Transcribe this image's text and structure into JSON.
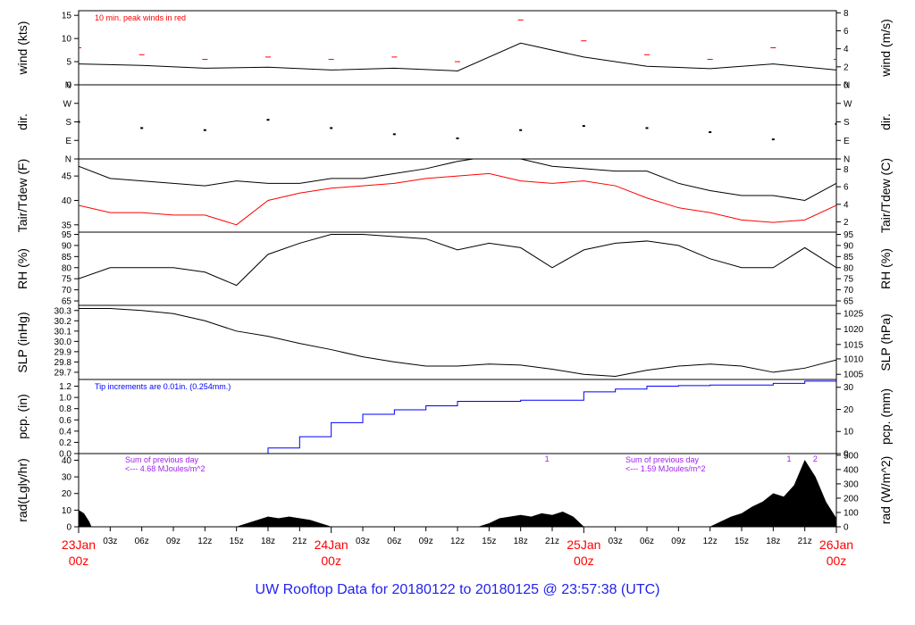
{
  "title": "UW Rooftop Data for 20180122  to  20180125 @ 23:57:38  (UTC)",
  "colors": {
    "black": "#000000",
    "red": "#ff0000",
    "blue": "#0000ff",
    "purple": "#a020f0",
    "title": "#2222ee"
  },
  "chart_data": [
    {
      "type": "line",
      "ylabel_left": "wind (kts)",
      "ylabel_right": "wind (m/s)",
      "ylim": [
        0,
        16
      ],
      "yticks_left": [
        "0",
        "5",
        "10",
        "15"
      ],
      "ytick_values_left": [
        0,
        5,
        10,
        15
      ],
      "yticks_right": [
        "0",
        "2",
        "4",
        "6",
        "8"
      ],
      "ytick_values_right": [
        0,
        3.89,
        7.78,
        11.66,
        15.55
      ],
      "annotation": "10 min. peak winds in red",
      "series": [
        {
          "color": "#000000",
          "x": [
            0,
            6,
            12,
            18,
            24,
            30,
            36,
            42,
            48,
            54,
            60,
            66,
            72
          ],
          "y": [
            4.5,
            4.2,
            3.6,
            3.8,
            3.2,
            3.6,
            3.0,
            9.0,
            6.0,
            4.0,
            3.5,
            4.5,
            3.2
          ]
        },
        {
          "color": "#ff0000",
          "style": "dashes",
          "x": [
            0,
            6,
            12,
            18,
            24,
            30,
            36,
            42,
            48,
            54,
            60,
            66,
            72
          ],
          "y": [
            8.0,
            6.5,
            5.5,
            6.0,
            5.5,
            6.0,
            5.0,
            14.0,
            9.5,
            6.5,
            5.5,
            8.0,
            5.5
          ]
        }
      ]
    },
    {
      "type": "scatter",
      "ylabel_left": "dir.",
      "ylabel_right": "dir.",
      "ylim": [
        0,
        360
      ],
      "yticks_left": [
        "N",
        "E",
        "S",
        "W",
        "N"
      ],
      "ytick_values_left": [
        0,
        90,
        180,
        270,
        360
      ],
      "yticks_right": [
        "N",
        "E",
        "S",
        "W",
        "N"
      ],
      "ytick_values_right": [
        0,
        90,
        180,
        270,
        360
      ],
      "series": [
        {
          "color": "#000000",
          "x": [
            0,
            6,
            12,
            18,
            24,
            30,
            36,
            42,
            48,
            54,
            60,
            66,
            72
          ],
          "y": [
            180,
            150,
            140,
            190,
            150,
            120,
            100,
            140,
            160,
            150,
            130,
            95,
            170
          ]
        }
      ]
    },
    {
      "type": "line",
      "ylabel_left": "Tair/Tdew (F)",
      "ylabel_right": "Tair/Tdew (C)",
      "ylim": [
        33.5,
        48.5
      ],
      "yticks_left": [
        "35",
        "40",
        "45"
      ],
      "ytick_values_left": [
        35,
        40,
        45
      ],
      "yticks_right": [
        "2",
        "4",
        "6",
        "8"
      ],
      "ytick_values_right": [
        35.6,
        39.2,
        42.8,
        46.4
      ],
      "series": [
        {
          "color": "#000000",
          "x": [
            0,
            3,
            6,
            9,
            12,
            15,
            18,
            21,
            24,
            27,
            30,
            33,
            36,
            39,
            42,
            45,
            48,
            51,
            54,
            57,
            60,
            63,
            66,
            69,
            72
          ],
          "y": [
            47,
            44.5,
            44,
            43.5,
            43,
            44,
            43.5,
            43.5,
            44.5,
            44.5,
            45.5,
            46.5,
            48,
            49,
            48.5,
            47,
            46.5,
            46,
            46,
            43.5,
            42,
            41,
            41,
            40,
            43.5
          ]
        },
        {
          "color": "#ff0000",
          "x": [
            0,
            3,
            6,
            9,
            12,
            15,
            18,
            21,
            24,
            27,
            30,
            33,
            36,
            39,
            42,
            45,
            48,
            51,
            54,
            57,
            60,
            63,
            66,
            69,
            72
          ],
          "y": [
            39,
            37.5,
            37.5,
            37,
            37,
            35,
            40,
            41.5,
            42.5,
            43,
            43.5,
            44.5,
            45,
            45.5,
            44,
            43.5,
            44,
            43,
            40.5,
            38.5,
            37.5,
            36,
            35.5,
            36,
            39
          ]
        }
      ]
    },
    {
      "type": "line",
      "ylabel_left": "RH (%)",
      "ylabel_right": "RH (%)",
      "ylim": [
        63,
        96
      ],
      "yticks_left": [
        "65",
        "70",
        "75",
        "80",
        "85",
        "90",
        "95"
      ],
      "ytick_values_left": [
        65,
        70,
        75,
        80,
        85,
        90,
        95
      ],
      "yticks_right": [
        "65",
        "70",
        "75",
        "80",
        "85",
        "90",
        "95"
      ],
      "ytick_values_right": [
        65,
        70,
        75,
        80,
        85,
        90,
        95
      ],
      "series": [
        {
          "color": "#000000",
          "x": [
            0,
            3,
            6,
            9,
            12,
            15,
            18,
            21,
            24,
            27,
            30,
            33,
            36,
            39,
            42,
            45,
            48,
            51,
            54,
            57,
            60,
            63,
            66,
            69,
            72
          ],
          "y": [
            75,
            80,
            80,
            80,
            78,
            72,
            86,
            91,
            95,
            95,
            94,
            93,
            88,
            91,
            89,
            80,
            88,
            91,
            92,
            90,
            84,
            80,
            80,
            89,
            80
          ]
        }
      ]
    },
    {
      "type": "line",
      "ylabel_left": "SLP (inHg)",
      "ylabel_right": "SLP (hPa)",
      "ylim": [
        29.63,
        30.35
      ],
      "yticks_left": [
        "29.7",
        "29.8",
        "29.9",
        "30.0",
        "30.1",
        "30.2",
        "30.3"
      ],
      "ytick_values_left": [
        29.7,
        29.8,
        29.9,
        30.0,
        30.1,
        30.2,
        30.3
      ],
      "yticks_right": [
        "1005",
        "1010",
        "1015",
        "1020",
        "1025"
      ],
      "ytick_values_right": [
        29.68,
        29.83,
        29.97,
        30.12,
        30.27
      ],
      "series": [
        {
          "color": "#000000",
          "x": [
            0,
            3,
            6,
            9,
            12,
            15,
            18,
            21,
            24,
            27,
            30,
            33,
            36,
            39,
            42,
            45,
            48,
            51,
            54,
            57,
            60,
            63,
            66,
            69,
            72
          ],
          "y": [
            30.32,
            30.32,
            30.3,
            30.27,
            30.2,
            30.1,
            30.05,
            29.98,
            29.92,
            29.85,
            29.8,
            29.76,
            29.76,
            29.78,
            29.77,
            29.73,
            29.68,
            29.66,
            29.72,
            29.76,
            29.78,
            29.76,
            29.7,
            29.74,
            29.82
          ]
        }
      ]
    },
    {
      "type": "line",
      "ylabel_left": "pcp. (in)",
      "ylabel_right": "pcp. (mm)",
      "ylim": [
        0,
        1.32
      ],
      "yticks_left": [
        "0.0",
        "0.2",
        "0.4",
        "0.6",
        "0.8",
        "1.0",
        "1.2"
      ],
      "ytick_values_left": [
        0,
        0.2,
        0.4,
        0.6,
        0.8,
        1.0,
        1.2
      ],
      "yticks_right": [
        "0",
        "10",
        "20",
        "30"
      ],
      "ytick_values_right": [
        0,
        0.394,
        0.787,
        1.181
      ],
      "annotation": "Tip increments are 0.01in. (0.254mm.)",
      "series": [
        {
          "color": "#0000ff",
          "step": true,
          "x": [
            0,
            15,
            18,
            21,
            24,
            27,
            30,
            33,
            36,
            39,
            42,
            45,
            48,
            51,
            54,
            57,
            60,
            63,
            66,
            69,
            72
          ],
          "y": [
            0,
            0,
            0.1,
            0.3,
            0.55,
            0.7,
            0.78,
            0.85,
            0.93,
            0.93,
            0.95,
            0.95,
            1.1,
            1.15,
            1.2,
            1.21,
            1.22,
            1.22,
            1.25,
            1.29,
            1.29
          ]
        }
      ]
    },
    {
      "type": "area",
      "ylabel_left": "rad(Lgly/hr)",
      "ylabel_right": "rad (W/m^2)",
      "ylim": [
        0,
        44
      ],
      "yticks_left": [
        "0",
        "10",
        "20",
        "30",
        "40"
      ],
      "ytick_values_left": [
        0,
        10,
        20,
        30,
        40
      ],
      "yticks_right": [
        "0",
        "100",
        "200",
        "300",
        "400",
        "500"
      ],
      "ytick_values_right": [
        0,
        8.6,
        17.2,
        25.8,
        34.4,
        43.0
      ],
      "series": [
        {
          "color": "#000000",
          "x": [
            0,
            0.5,
            1,
            1.2,
            15,
            16,
            17,
            18,
            19,
            20,
            21,
            22,
            23,
            24,
            38,
            39,
            40,
            41,
            42,
            43,
            44,
            45,
            46,
            47,
            48,
            60,
            61,
            62,
            63,
            64,
            65,
            66,
            67,
            68,
            69,
            70,
            71,
            72
          ],
          "y": [
            10,
            8,
            3,
            0,
            0,
            2,
            4,
            6,
            5,
            6,
            5,
            4,
            2,
            0,
            0,
            2,
            5,
            6,
            7,
            6,
            8,
            7,
            9,
            6,
            0,
            0,
            3,
            6,
            8,
            12,
            15,
            20,
            18,
            25,
            40,
            30,
            15,
            5
          ]
        }
      ],
      "annotations": [
        {
          "lines": [
            "Sum of previous day",
            "<--- 4.68 MJoules/m^2"
          ],
          "color": "#a020f0"
        },
        {
          "lines": [
            "Sum of previous day",
            "<--- 1.59 MJoules/m^2"
          ],
          "color": "#a020f0"
        },
        {
          "text": "1",
          "color": "#a020f0",
          "x": 44.5
        },
        {
          "text": "1",
          "color": "#a020f0",
          "x": 67.5
        },
        {
          "text": "2",
          "color": "#a020f0",
          "x": 70.0
        }
      ]
    }
  ],
  "x_axis": {
    "range_hours": [
      0,
      72
    ],
    "hour_ticks": [
      {
        "h": 3,
        "label": "03z"
      },
      {
        "h": 6,
        "label": "06z"
      },
      {
        "h": 9,
        "label": "09z"
      },
      {
        "h": 12,
        "label": "12z"
      },
      {
        "h": 15,
        "label": "15z"
      },
      {
        "h": 18,
        "label": "18z"
      },
      {
        "h": 21,
        "label": "21z"
      },
      {
        "h": 27,
        "label": "03z"
      },
      {
        "h": 30,
        "label": "06z"
      },
      {
        "h": 33,
        "label": "09z"
      },
      {
        "h": 36,
        "label": "12z"
      },
      {
        "h": 39,
        "label": "15z"
      },
      {
        "h": 42,
        "label": "18z"
      },
      {
        "h": 45,
        "label": "21z"
      },
      {
        "h": 51,
        "label": "03z"
      },
      {
        "h": 54,
        "label": "06z"
      },
      {
        "h": 57,
        "label": "09z"
      },
      {
        "h": 60,
        "label": "12z"
      },
      {
        "h": 63,
        "label": "15z"
      },
      {
        "h": 66,
        "label": "18z"
      },
      {
        "h": 69,
        "label": "21z"
      }
    ],
    "day_ticks": [
      {
        "h": 0,
        "date": "23Jan",
        "time": "00z"
      },
      {
        "h": 24,
        "date": "24Jan",
        "time": "00z"
      },
      {
        "h": 48,
        "date": "25Jan",
        "time": "00z"
      },
      {
        "h": 72,
        "date": "26Jan",
        "time": "00z"
      }
    ]
  }
}
